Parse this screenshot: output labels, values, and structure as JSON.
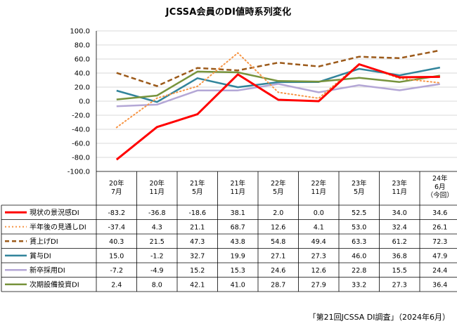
{
  "title": "JCSSA会員のDI値時系列変化",
  "source_note": "「第21回JCSSA DI調査」（2024年6月）",
  "chart_data": {
    "type": "line",
    "title": "JCSSA会員のDI値時系列変化",
    "ylim": [
      -100,
      100
    ],
    "yticks": [
      "100.0",
      "80.0",
      "60.0",
      "40.0",
      "20.0",
      "0.0",
      "-20.0",
      "-40.0",
      "-60.0",
      "-80.0",
      "-100.0"
    ],
    "ytick_values": [
      100,
      80,
      60,
      40,
      20,
      0,
      -20,
      -40,
      -60,
      -80,
      -100
    ],
    "categories": [
      {
        "line1": "20年",
        "line2": "7月",
        "line3": ""
      },
      {
        "line1": "20年",
        "line2": "11月",
        "line3": ""
      },
      {
        "line1": "21年",
        "line2": "5月",
        "line3": ""
      },
      {
        "line1": "21年",
        "line2": "11月",
        "line3": ""
      },
      {
        "line1": "22年",
        "line2": "5月",
        "line3": ""
      },
      {
        "line1": "22年",
        "line2": "11月",
        "line3": ""
      },
      {
        "line1": "23年",
        "line2": "5月",
        "line3": ""
      },
      {
        "line1": "23年",
        "line2": "11月",
        "line3": ""
      },
      {
        "line1": "24年",
        "line2": "6月",
        "line3": "（今回）"
      }
    ],
    "series": [
      {
        "name": "現状の景況感DI",
        "color": "#ff0000",
        "dash": "solid",
        "width": 3,
        "values": [
          -83.2,
          -36.8,
          -18.6,
          38.1,
          2.0,
          0.0,
          52.5,
          34.0,
          34.6
        ],
        "labels": [
          "-83.2",
          "-36.8",
          "-18.6",
          "38.1",
          "2.0",
          "0.0",
          "52.5",
          "34.0",
          "34.6"
        ]
      },
      {
        "name": "半年後の見通しDI",
        "color": "#f79646",
        "dash": "dot",
        "width": 2,
        "values": [
          -37.4,
          4.3,
          21.1,
          68.7,
          12.6,
          4.1,
          53.0,
          32.4,
          26.1
        ],
        "labels": [
          "-37.4",
          "4.3",
          "21.1",
          "68.7",
          "12.6",
          "4.1",
          "53.0",
          "32.4",
          "26.1"
        ]
      },
      {
        "name": "賃上げDI",
        "color": "#9c5a1a",
        "dash": "dash",
        "width": 2.5,
        "values": [
          40.3,
          21.5,
          47.3,
          43.8,
          54.8,
          49.4,
          63.3,
          61.2,
          72.3
        ],
        "labels": [
          "40.3",
          "21.5",
          "47.3",
          "43.8",
          "54.8",
          "49.4",
          "63.3",
          "61.2",
          "72.3"
        ]
      },
      {
        "name": "賞与DI",
        "color": "#31849b",
        "dash": "solid",
        "width": 2.5,
        "values": [
          15.0,
          -1.2,
          32.7,
          19.9,
          27.1,
          27.3,
          46.0,
          36.8,
          47.9
        ],
        "labels": [
          "15.0",
          "-1.2",
          "32.7",
          "19.9",
          "27.1",
          "27.3",
          "46.0",
          "36.8",
          "47.9"
        ]
      },
      {
        "name": "新卒採用DI",
        "color": "#b4a7d6",
        "dash": "solid",
        "width": 2.5,
        "values": [
          -7.2,
          -4.9,
          15.2,
          15.3,
          24.6,
          12.6,
          22.8,
          15.5,
          24.4
        ],
        "labels": [
          "-7.2",
          "-4.9",
          "15.2",
          "15.3",
          "24.6",
          "12.6",
          "22.8",
          "15.5",
          "24.4"
        ]
      },
      {
        "name": "次期設備投資DI",
        "color": "#77933c",
        "dash": "solid",
        "width": 2.5,
        "values": [
          2.4,
          8.0,
          42.1,
          41.0,
          28.7,
          27.9,
          33.2,
          27.3,
          36.4
        ],
        "labels": [
          "2.4",
          "8.0",
          "42.1",
          "41.0",
          "28.7",
          "27.9",
          "33.2",
          "27.3",
          "36.4"
        ]
      }
    ]
  }
}
